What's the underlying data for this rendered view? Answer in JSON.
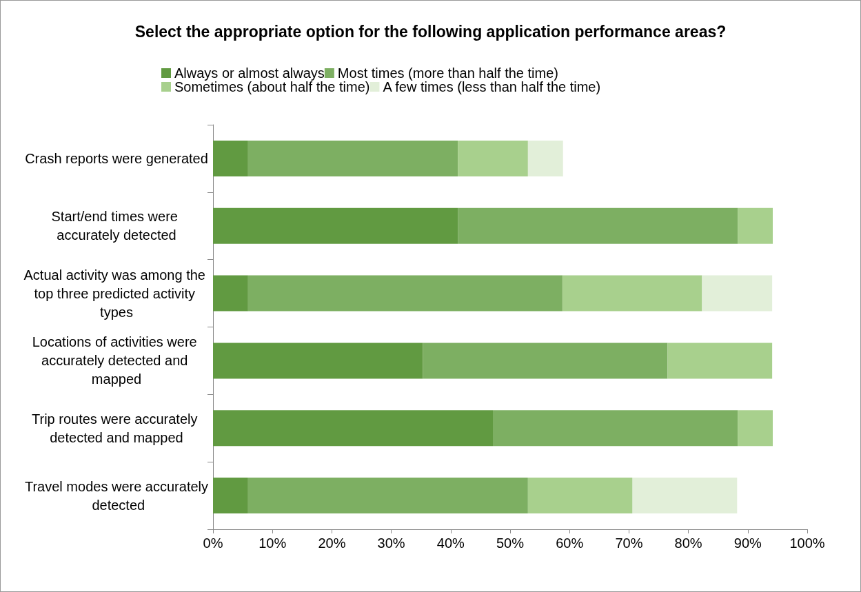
{
  "chart_data": {
    "type": "bar",
    "orientation": "horizontal",
    "stacked": true,
    "title": "Select the appropriate option for the following application performance areas?",
    "categories": [
      "Crash reports were generated",
      "Start/end times were accurately detected",
      "Actual activity was among the top three predicted activity types",
      "Locations of activities were accurately detected and mapped",
      "Trip routes were accurately detected and mapped",
      "Travel modes were accurately detected"
    ],
    "series": [
      {
        "name": "Always or almost always",
        "color": "#619a41",
        "values": [
          5.9,
          41.2,
          5.9,
          35.3,
          47.1,
          5.9
        ]
      },
      {
        "name": "Most times (more than half the time)",
        "color": "#7daf62",
        "values": [
          35.3,
          47.1,
          52.9,
          41.2,
          41.2,
          47.1
        ]
      },
      {
        "name": "Sometimes (about half the time)",
        "color": "#a8d08d",
        "values": [
          11.8,
          5.9,
          23.5,
          17.6,
          5.9,
          17.6
        ]
      },
      {
        "name": "A few times (less than half the time)",
        "color": "#e2efd9",
        "values": [
          5.9,
          0,
          11.8,
          0,
          0,
          17.6
        ]
      }
    ],
    "xlim": [
      0,
      100
    ],
    "xticks": [
      {
        "value": 0,
        "label": "0%"
      },
      {
        "value": 10,
        "label": "10%"
      },
      {
        "value": 20,
        "label": "20%"
      },
      {
        "value": 30,
        "label": "30%"
      },
      {
        "value": 40,
        "label": "40%"
      },
      {
        "value": 50,
        "label": "50%"
      },
      {
        "value": 60,
        "label": "60%"
      },
      {
        "value": 70,
        "label": "70%"
      },
      {
        "value": 80,
        "label": "80%"
      },
      {
        "value": 90,
        "label": "90%"
      },
      {
        "value": 100,
        "label": "100%"
      }
    ],
    "grid": false,
    "legend": "top"
  }
}
